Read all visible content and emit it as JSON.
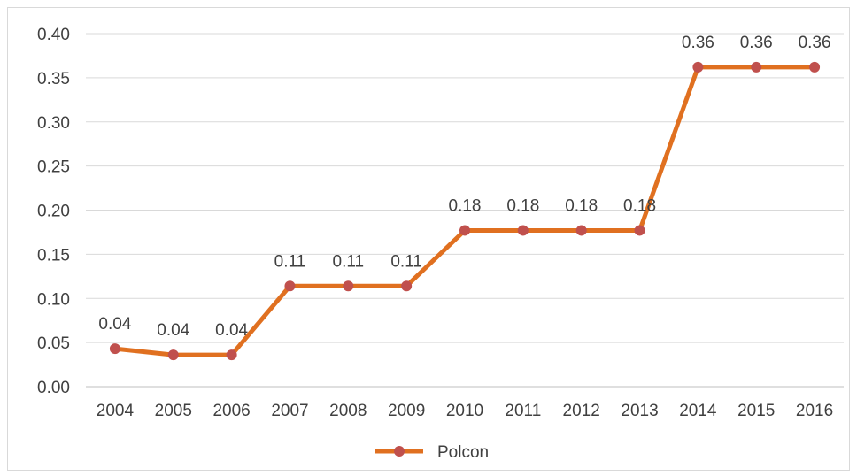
{
  "chart_data": {
    "type": "line",
    "title": "",
    "xlabel": "",
    "ylabel": "",
    "categories": [
      "2004",
      "2005",
      "2006",
      "2007",
      "2008",
      "2009",
      "2010",
      "2011",
      "2012",
      "2013",
      "2014",
      "2015",
      "2016"
    ],
    "series": [
      {
        "name": "Polcon",
        "values": [
          0.043,
          0.036,
          0.036,
          0.114,
          0.114,
          0.114,
          0.177,
          0.177,
          0.177,
          0.177,
          0.362,
          0.362,
          0.362
        ],
        "data_labels": [
          "0.04",
          "0.04",
          "0.04",
          "0.11",
          "0.11",
          "0.11",
          "0.18",
          "0.18",
          "0.18",
          "0.18",
          "0.36",
          "0.36",
          "0.36"
        ],
        "line_color": "#e07020",
        "marker_color": "#c0504d"
      }
    ],
    "ylim": [
      0,
      0.4
    ],
    "yticks": [
      "0.00",
      "0.05",
      "0.10",
      "0.15",
      "0.20",
      "0.25",
      "0.30",
      "0.35",
      "0.40"
    ],
    "grid": true,
    "legend": {
      "position": "bottom",
      "entries": [
        "Polcon"
      ]
    }
  }
}
